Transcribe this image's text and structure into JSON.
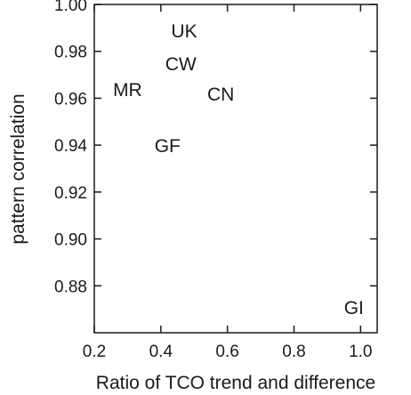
{
  "chart_data": {
    "type": "scatter",
    "xlabel": "Ratio of TCO trend and difference",
    "ylabel": "pattern correlation",
    "xlim": [
      0.2,
      1.05
    ],
    "ylim": [
      0.86,
      1.0
    ],
    "xticks": [
      0.2,
      0.4,
      0.6,
      0.8,
      1.0
    ],
    "xtick_labels": [
      "0.2",
      "0.4",
      "0.6",
      "0.8",
      "1.0"
    ],
    "yticks": [
      0.88,
      0.9,
      0.92,
      0.94,
      0.96,
      0.98,
      1.0
    ],
    "ytick_labels": [
      "0.88",
      "0.90",
      "0.92",
      "0.94",
      "0.96",
      "0.98",
      "1.00"
    ],
    "points": [
      {
        "label": "UK",
        "x": 0.47,
        "y": 0.989
      },
      {
        "label": "CW",
        "x": 0.46,
        "y": 0.975
      },
      {
        "label": "MR",
        "x": 0.3,
        "y": 0.964
      },
      {
        "label": "CN",
        "x": 0.58,
        "y": 0.962
      },
      {
        "label": "GF",
        "x": 0.42,
        "y": 0.94
      },
      {
        "label": "GI",
        "x": 0.98,
        "y": 0.871
      }
    ],
    "grid": false,
    "marker": "text-label"
  }
}
